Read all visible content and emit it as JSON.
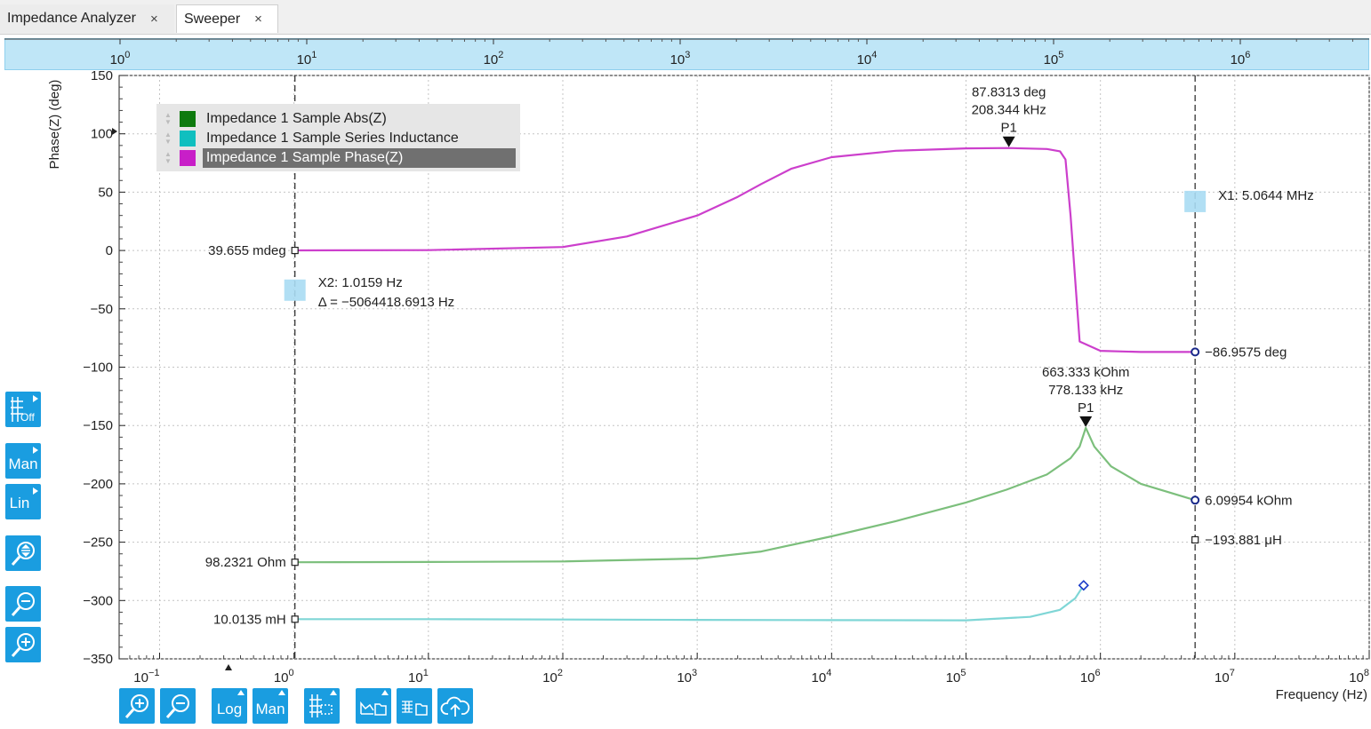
{
  "tabs": [
    {
      "label": "Impedance Analyzer",
      "close": "×"
    },
    {
      "label": "Sweeper",
      "close": "×"
    }
  ],
  "colors": {
    "accent": "#1a9de0",
    "overview_bg": "#bfe6f7",
    "abs_z": "#7cbf7c",
    "series_inductance": "#7fd6d6",
    "phase_z": "#cc3fcc",
    "legend_abs_z": "#0e7a0e",
    "legend_series_inductance": "#10bfbf",
    "legend_phase_z": "#c81fc8"
  },
  "overview_axis": {
    "tick_labels": [
      {
        "base": "10",
        "exp": "0"
      },
      {
        "base": "10",
        "exp": "1"
      },
      {
        "base": "10",
        "exp": "2"
      },
      {
        "base": "10",
        "exp": "3"
      },
      {
        "base": "10",
        "exp": "4"
      },
      {
        "base": "10",
        "exp": "5"
      },
      {
        "base": "10",
        "exp": "6"
      }
    ]
  },
  "legend": {
    "items": [
      {
        "label": "Impedance 1 Sample Abs(Z)",
        "color_key": "legend_abs_z",
        "selected": false
      },
      {
        "label": "Impedance 1 Sample Series Inductance",
        "color_key": "legend_series_inductance",
        "selected": false
      },
      {
        "label": "Impedance 1 Sample Phase(Z)",
        "color_key": "legend_phase_z",
        "selected": true
      }
    ]
  },
  "chart_data": {
    "type": "line",
    "x_scale": "log",
    "xlim": [
      0.05,
      100000000
    ],
    "ylim": [
      -350,
      150
    ],
    "ylabel": "Phase(Z) (deg)",
    "xlabel": "Frequency (Hz)",
    "grid": true,
    "y_ticks": [
      "150",
      "100",
      "50",
      "0",
      "−50",
      "−100",
      "−150",
      "−200",
      "−250",
      "−300",
      "−350"
    ],
    "x_ticks": [
      {
        "base": "10",
        "exp": "−1"
      },
      {
        "base": "10",
        "exp": "0"
      },
      {
        "base": "10",
        "exp": "1"
      },
      {
        "base": "10",
        "exp": "2"
      },
      {
        "base": "10",
        "exp": "3"
      },
      {
        "base": "10",
        "exp": "4"
      },
      {
        "base": "10",
        "exp": "5"
      },
      {
        "base": "10",
        "exp": "6"
      },
      {
        "base": "10",
        "exp": "7"
      },
      {
        "base": "10",
        "exp": "8"
      }
    ],
    "series": [
      {
        "name": "Impedance 1 Sample Phase(Z)",
        "color_key": "phase_z",
        "x": [
          1.0159,
          10,
          100,
          300,
          1000,
          2000,
          3000,
          5000,
          10000,
          30000,
          100000,
          208344,
          400000,
          500000,
          550000,
          600000,
          700000,
          1000000,
          2000000,
          5064418
        ],
        "y": [
          0.04,
          0.3,
          3,
          12,
          30,
          46,
          57,
          70,
          80,
          85.5,
          87.5,
          87.83,
          87,
          85,
          78,
          30,
          -78,
          -86,
          -87,
          -86.96
        ]
      },
      {
        "name": "Impedance 1 Sample Abs(Z)",
        "color_key": "abs_z",
        "x": [
          1.0159,
          10,
          100,
          1000,
          3000,
          10000,
          30000,
          100000,
          200000,
          400000,
          600000,
          700000,
          778133,
          900000,
          1200000,
          2000000,
          5064418
        ],
        "y": [
          -267.2,
          -267,
          -266.5,
          -264,
          -258,
          -245,
          -232,
          -216,
          -205,
          -192,
          -178,
          -168,
          -152,
          -168,
          -185,
          -200,
          -214
        ]
      },
      {
        "name": "Impedance 1 Sample Series Inductance",
        "color_key": "series_inductance",
        "x": [
          1.0159,
          10,
          100,
          1000,
          10000,
          100000,
          300000,
          500000,
          650000,
          750000
        ],
        "y": [
          -316,
          -316,
          -316.3,
          -316.6,
          -316.8,
          -317,
          -314,
          -308,
          -298,
          -287
        ]
      }
    ],
    "markers": [
      {
        "name": "X1",
        "freq": 5064418,
        "label": "X1: 5.0644 MHz"
      },
      {
        "name": "X2",
        "freq": 1.0159,
        "label": "X2: 1.0159 Hz",
        "delta": "Δ = −5064418.6913 Hz"
      }
    ],
    "peaks": [
      {
        "series": "Impedance 1 Sample Phase(Z)",
        "x": 208344,
        "y": 87.83,
        "value": "87.8313 deg",
        "freq": "208.344 kHz",
        "label": "P1"
      },
      {
        "series": "Impedance 1 Sample Abs(Z)",
        "x": 778133,
        "y": -152,
        "value": "663.333 kOhm",
        "freq": "778.133 kHz",
        "label": "P1"
      }
    ],
    "cursor_values": [
      {
        "x": 1.0159,
        "y": 0.04,
        "label": "39.655 mdeg",
        "side": "left"
      },
      {
        "x": 1.0159,
        "y": -267.2,
        "label": "98.2321 Ohm",
        "side": "left"
      },
      {
        "x": 1.0159,
        "y": -316,
        "label": "10.0135 mH",
        "side": "left"
      },
      {
        "x": 5064418,
        "y": -86.96,
        "label": "−86.9575 deg",
        "side": "right"
      },
      {
        "x": 5064418,
        "y": -214,
        "label": "6.09954 kOhm",
        "side": "right"
      },
      {
        "x": 5064418,
        "y": -248,
        "label": "−193.881 μH",
        "side": "right"
      }
    ]
  },
  "side_toolbar": [
    {
      "label": "Off",
      "icon": "grid-off-icon"
    },
    {
      "label": "Man",
      "icon": ""
    },
    {
      "label": "Lin",
      "icon": ""
    },
    {
      "label": "",
      "icon": "zoom-fit-icon"
    },
    {
      "label": "",
      "icon": "zoom-out-icon"
    },
    {
      "label": "",
      "icon": "zoom-in-icon"
    }
  ],
  "bottom_toolbar": [
    {
      "label": "",
      "icon": "zoom-in-icon"
    },
    {
      "label": "",
      "icon": "zoom-out-icon"
    },
    {
      "label": "Log",
      "icon": ""
    },
    {
      "label": "Man",
      "icon": ""
    },
    {
      "label": "",
      "icon": "grid-select-icon"
    },
    {
      "label": "",
      "icon": "save-graph-icon"
    },
    {
      "label": "",
      "icon": "save-data-icon"
    },
    {
      "label": "",
      "icon": "cloud-upload-icon"
    }
  ]
}
